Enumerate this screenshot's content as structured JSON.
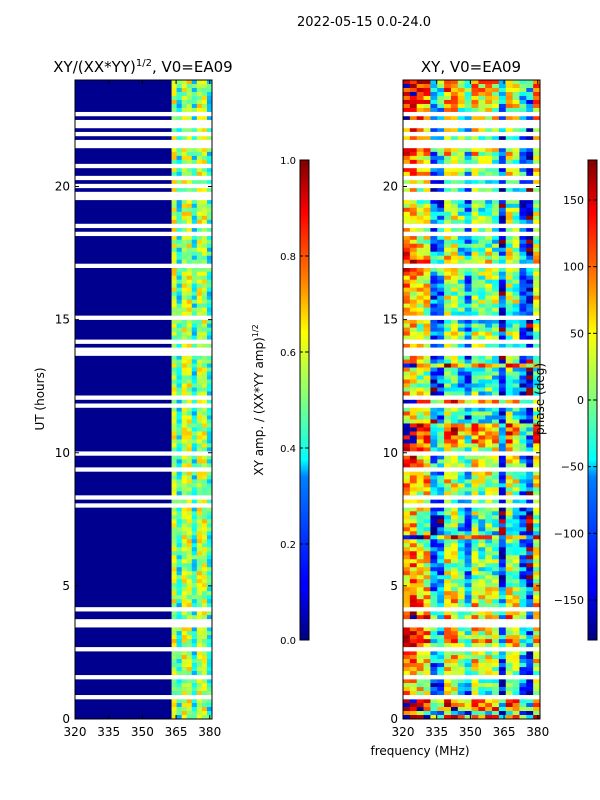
{
  "suptitle": "2022-05-15 0.0-24.0",
  "chart_data": [
    {
      "type": "heatmap",
      "title": "XY/(XX*YY)^{1/2}, V0=EA09",
      "title_main": "XY/(XX*YY)",
      "title_exp": "1/2",
      "title_tail": ", V0=EA09",
      "xlabel": "",
      "ylabel": "UT (hours)",
      "x_range": [
        320,
        381
      ],
      "y_range": [
        0,
        24
      ],
      "x_ticks": [
        320,
        335,
        350,
        365,
        380
      ],
      "y_ticks": [
        0,
        5,
        10,
        15,
        20
      ],
      "x_tick_labels": [
        "320",
        "335",
        "350",
        "365",
        "380"
      ],
      "y_tick_labels": [
        "0",
        "5",
        "10",
        "15",
        "20"
      ],
      "colormap": "jet",
      "colorbar": {
        "label": "XY amp. / (XX*YY amp)^{1/2}",
        "label_main": "XY amp. / (XX*YY amp)",
        "label_exp": "1/2",
        "range": [
          0.0,
          1.0
        ],
        "ticks": [
          0.0,
          0.2,
          0.4,
          0.6,
          0.8,
          1.0
        ],
        "tick_labels": [
          "0.0",
          "0.2",
          "0.4",
          "0.6",
          "0.8",
          "1.0"
        ]
      }
    },
    {
      "type": "heatmap",
      "title": "XY, V0=EA09",
      "xlabel": "frequency (MHz)",
      "ylabel": "",
      "x_range": [
        320,
        381
      ],
      "y_range": [
        0,
        24
      ],
      "x_ticks": [
        320,
        335,
        350,
        365,
        380
      ],
      "y_ticks": [
        0,
        5,
        10,
        15,
        20
      ],
      "x_tick_labels": [
        "320",
        "335",
        "350",
        "365",
        "380"
      ],
      "y_tick_labels": [
        "0",
        "5",
        "10",
        "15",
        "20"
      ],
      "colormap": "jet",
      "colorbar": {
        "label": "phase (deg)",
        "range": [
          -180,
          180
        ],
        "ticks": [
          -150,
          -100,
          -50,
          0,
          50,
          100,
          150
        ],
        "tick_labels": [
          "−150",
          "−100",
          "−50",
          "0",
          "50",
          "100",
          "150"
        ]
      }
    }
  ]
}
